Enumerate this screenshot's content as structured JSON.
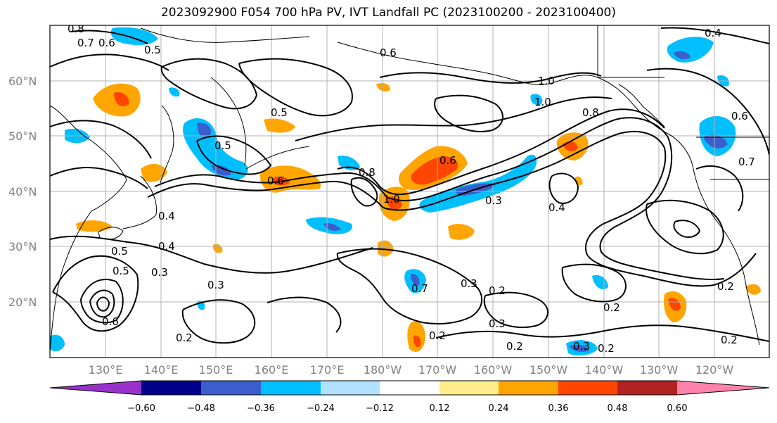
{
  "title": "2023092900 F054 700 hPa PV, IVT Landfall PC (2023100200 - 2023100400)",
  "map": {
    "lat_labels": [
      "60°N",
      "50°N",
      "40°N",
      "30°N",
      "20°N"
    ],
    "lon_labels": [
      "130°E",
      "140°E",
      "150°E",
      "160°E",
      "170°E",
      "180°W",
      "170°W",
      "160°W",
      "150°W",
      "140°W",
      "130°W",
      "120°W"
    ],
    "contour_labels": [
      "0.8",
      "0.7",
      "0.6",
      "0.5",
      "0.6",
      "0.4",
      "1.0",
      "1.0",
      "0.5",
      "0.8",
      "0.6",
      "0.7",
      "0.5",
      "0.6",
      "0.8",
      "0.6",
      "1.0",
      "0.3",
      "0.4",
      "0.4",
      "0.5",
      "0.4",
      "0.3",
      "0.5",
      "0.6",
      "0.3",
      "0.7",
      "0.3",
      "0.2",
      "0.3",
      "0.2",
      "0.2",
      "0.2",
      "0.3",
      "0.2",
      "0.2",
      "0.2",
      "0.2"
    ]
  },
  "colorbar": {
    "colors": [
      "#9932cc",
      "#00008b",
      "#3a5fcd",
      "#00bfff",
      "#b0e2ff",
      "#ffffff",
      "#ffec8b",
      "#ffa500",
      "#ff4500",
      "#b22222",
      "#ff82ab"
    ],
    "tick_labels": [
      "−0.60",
      "−0.48",
      "−0.36",
      "−0.24",
      "−0.12",
      "0.12",
      "0.24",
      "0.36",
      "0.48",
      "0.60"
    ]
  }
}
